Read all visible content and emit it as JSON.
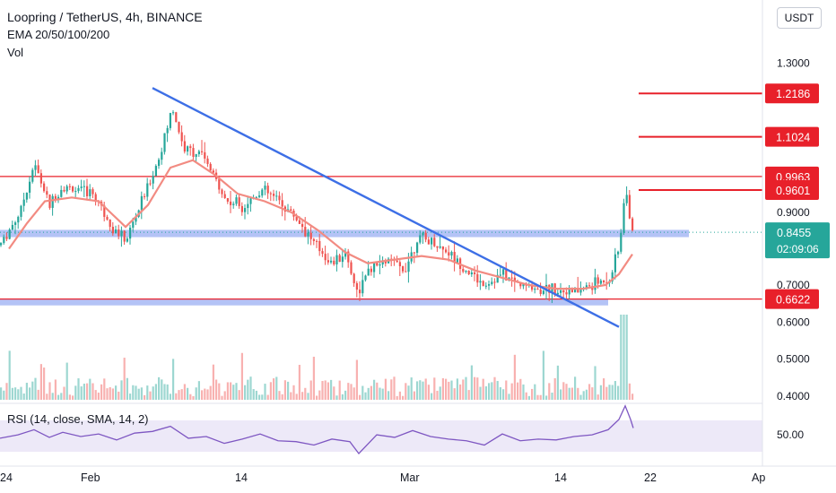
{
  "header": {
    "title": "Loopring / TetherUS, 4h, BINANCE",
    "indicators": "EMA 20/50/100/200",
    "volume": "Vol",
    "currency": "USDT"
  },
  "rsi_panel": {
    "legend": "RSI (14, close, SMA, 14, 2)",
    "value_label": "50.00"
  },
  "colors": {
    "up": "#26a69a",
    "down": "#ef5350",
    "ema": "#f28b82",
    "trendline": "#3d6fe6",
    "zone": "#a7b8f4",
    "level_line": "#e8202a",
    "rsi_line": "#7e57c2",
    "rsi_band": "#ece8f7",
    "current_price": "#26a69a"
  },
  "chart_data": {
    "type": "candlestick",
    "symbol": "Loopring / TetherUS",
    "interval": "4h",
    "exchange": "BINANCE",
    "y_axis_ticks": [
      "1.3000",
      "0.9000",
      "0.7000",
      "0.6000",
      "0.5000",
      "0.4000"
    ],
    "x_axis_ticks": [
      "24",
      "Feb",
      "14",
      "Mar",
      "14",
      "22",
      "Ap"
    ],
    "ylim": [
      0.38,
      1.4
    ],
    "price_path": [
      [
        0,
        0.81
      ],
      [
        22,
        0.9
      ],
      [
        38,
        1.03
      ],
      [
        55,
        0.92
      ],
      [
        70,
        0.97
      ],
      [
        85,
        0.96
      ],
      [
        105,
        0.95
      ],
      [
        125,
        0.86
      ],
      [
        140,
        0.82
      ],
      [
        158,
        0.93
      ],
      [
        178,
        1.05
      ],
      [
        192,
        1.18
      ],
      [
        205,
        1.07
      ],
      [
        222,
        1.06
      ],
      [
        238,
        1.0
      ],
      [
        252,
        0.93
      ],
      [
        272,
        0.92
      ],
      [
        292,
        0.96
      ],
      [
        312,
        0.93
      ],
      [
        332,
        0.88
      ],
      [
        352,
        0.81
      ],
      [
        370,
        0.76
      ],
      [
        385,
        0.79
      ],
      [
        398,
        0.68
      ],
      [
        412,
        0.74
      ],
      [
        432,
        0.77
      ],
      [
        450,
        0.74
      ],
      [
        466,
        0.83
      ],
      [
        480,
        0.82
      ],
      [
        500,
        0.79
      ],
      [
        520,
        0.74
      ],
      [
        540,
        0.7
      ],
      [
        560,
        0.73
      ],
      [
        580,
        0.7
      ],
      [
        600,
        0.69
      ],
      [
        620,
        0.69
      ],
      [
        640,
        0.68
      ],
      [
        660,
        0.7
      ],
      [
        680,
        0.72
      ],
      [
        690,
        0.8
      ],
      [
        697,
        0.96
      ],
      [
        702,
        0.89
      ],
      [
        706,
        0.845
      ]
    ],
    "ema_path": [
      [
        10,
        0.8
      ],
      [
        30,
        0.87
      ],
      [
        50,
        0.93
      ],
      [
        80,
        0.94
      ],
      [
        110,
        0.93
      ],
      [
        140,
        0.86
      ],
      [
        165,
        0.92
      ],
      [
        190,
        1.02
      ],
      [
        215,
        1.04
      ],
      [
        240,
        1.0
      ],
      [
        265,
        0.95
      ],
      [
        295,
        0.93
      ],
      [
        325,
        0.9
      ],
      [
        355,
        0.85
      ],
      [
        385,
        0.79
      ],
      [
        410,
        0.76
      ],
      [
        440,
        0.77
      ],
      [
        470,
        0.78
      ],
      [
        500,
        0.77
      ],
      [
        530,
        0.74
      ],
      [
        560,
        0.72
      ],
      [
        590,
        0.7
      ],
      [
        620,
        0.69
      ],
      [
        650,
        0.69
      ],
      [
        675,
        0.7
      ],
      [
        690,
        0.73
      ],
      [
        705,
        0.785
      ]
    ],
    "annotations": {
      "price_labels": [
        {
          "price": 1.2186,
          "label": "1.2186"
        },
        {
          "price": 1.1024,
          "label": "1.1024"
        },
        {
          "price": 0.9963,
          "label": "0.9963"
        },
        {
          "price": 0.9601,
          "label": "0.9601"
        },
        {
          "price": 0.6622,
          "label": "0.6622"
        }
      ],
      "current_price": {
        "price": 0.8455,
        "label": "0.8455",
        "countdown": "02:09:06"
      },
      "horizontal_lines": [
        0.9963,
        0.6622
      ],
      "short_lines": [
        1.2186,
        1.1024,
        0.9601
      ],
      "zones": [
        {
          "low": 0.832,
          "high": 0.852
        },
        {
          "low": 0.645,
          "high": 0.661
        }
      ],
      "trendline": {
        "from": [
          170,
          1.233
        ],
        "to": [
          690,
          0.587
        ]
      }
    },
    "rsi_path": [
      [
        0,
        48
      ],
      [
        20,
        52
      ],
      [
        38,
        58
      ],
      [
        55,
        49
      ],
      [
        70,
        55
      ],
      [
        90,
        50
      ],
      [
        110,
        53
      ],
      [
        130,
        46
      ],
      [
        150,
        54
      ],
      [
        170,
        56
      ],
      [
        190,
        62
      ],
      [
        210,
        48
      ],
      [
        230,
        50
      ],
      [
        250,
        42
      ],
      [
        270,
        47
      ],
      [
        290,
        53
      ],
      [
        310,
        45
      ],
      [
        330,
        44
      ],
      [
        350,
        40
      ],
      [
        370,
        47
      ],
      [
        390,
        44
      ],
      [
        400,
        30
      ],
      [
        420,
        52
      ],
      [
        440,
        49
      ],
      [
        460,
        57
      ],
      [
        480,
        50
      ],
      [
        500,
        47
      ],
      [
        520,
        45
      ],
      [
        540,
        40
      ],
      [
        560,
        53
      ],
      [
        580,
        45
      ],
      [
        600,
        47
      ],
      [
        620,
        46
      ],
      [
        640,
        50
      ],
      [
        660,
        52
      ],
      [
        678,
        58
      ],
      [
        690,
        70
      ],
      [
        697,
        86
      ],
      [
        703,
        70
      ],
      [
        706,
        60
      ]
    ]
  }
}
